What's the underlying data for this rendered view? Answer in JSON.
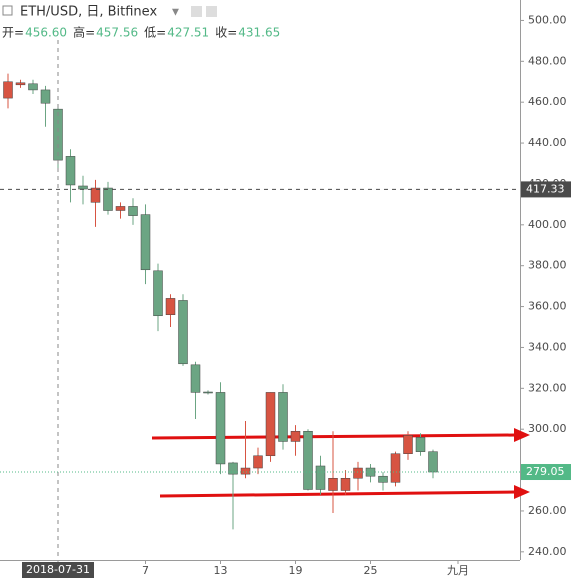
{
  "header": {
    "title": "ETH/USD, 日, Bitfinex"
  },
  "ohlc_legend": {
    "labels": [
      "开=",
      "高=",
      "低=",
      "收="
    ],
    "values": [
      "456.60",
      "457.56",
      "427.51",
      "431.65"
    ]
  },
  "chart_data": {
    "type": "candlestick",
    "categories": [
      null,
      null,
      null,
      null,
      "2018-07-31",
      null,
      null,
      null,
      null,
      null,
      null,
      "7",
      null,
      null,
      null,
      null,
      null,
      "13",
      null,
      null,
      null,
      null,
      null,
      "19",
      null,
      null,
      null,
      null,
      null,
      "25",
      null,
      null,
      null,
      null,
      null,
      null,
      "九月"
    ],
    "open": [
      462,
      468.5,
      469,
      466,
      456.6,
      433.5,
      419,
      411,
      418,
      407,
      409,
      405,
      377.5,
      356,
      363,
      331.5,
      318.2,
      318,
      283.5,
      278,
      281,
      287,
      318,
      294,
      299,
      282,
      270,
      270,
      276,
      281,
      277,
      274,
      288,
      296,
      289,
      null,
      null
    ],
    "high": [
      474,
      471,
      471,
      468,
      457.56,
      437,
      424,
      422,
      421,
      411,
      413,
      410,
      381,
      366,
      366,
      333,
      319,
      323,
      284,
      304,
      291,
      318,
      322,
      302,
      300,
      287,
      299,
      280,
      284,
      283,
      279,
      289,
      299,
      298,
      290,
      null,
      null
    ],
    "low": [
      457,
      467,
      464,
      448,
      427.51,
      411,
      410,
      399,
      405,
      403,
      400,
      371,
      348,
      350,
      331,
      305,
      317,
      278,
      251,
      276,
      278,
      284,
      290,
      287,
      270,
      268,
      259,
      268,
      270,
      274,
      270,
      272,
      285,
      287,
      276,
      null,
      null
    ],
    "close": [
      470,
      469.5,
      466,
      459.5,
      431.65,
      419.5,
      417.5,
      418,
      407,
      409,
      404.5,
      378,
      355.5,
      364,
      332,
      318,
      317.8,
      283,
      278,
      281,
      287,
      318,
      294,
      299,
      270.5,
      270.5,
      276,
      276,
      281,
      277,
      274,
      288,
      297,
      289,
      279.05,
      null,
      null
    ],
    "up_color": "#d75442",
    "down_color": "#6ba583",
    "ylim": [
      236,
      510
    ],
    "yticks": [
      {
        "value": 240,
        "label": "240.00"
      },
      {
        "value": 260,
        "label": "260.00"
      },
      {
        "value": 280,
        "label": "280.00"
      },
      {
        "value": 300,
        "label": "300.00"
      },
      {
        "value": 320,
        "label": "320.00"
      },
      {
        "value": 340,
        "label": "340.00"
      },
      {
        "value": 360,
        "label": "360.00"
      },
      {
        "value": 380,
        "label": "380.00"
      },
      {
        "value": 400,
        "label": "400.00"
      },
      {
        "value": 420,
        "label": "420.00"
      },
      {
        "value": 440,
        "label": "440.00"
      },
      {
        "value": 460,
        "label": "460.00"
      },
      {
        "value": 480,
        "label": "480.00"
      },
      {
        "value": 500,
        "label": "500.00"
      }
    ],
    "markers": [
      {
        "value": 417.33,
        "label": "417.33",
        "color": "#4a4a4a"
      },
      {
        "value": 279.05,
        "label": "279.05",
        "color": "#53b987"
      }
    ]
  }
}
